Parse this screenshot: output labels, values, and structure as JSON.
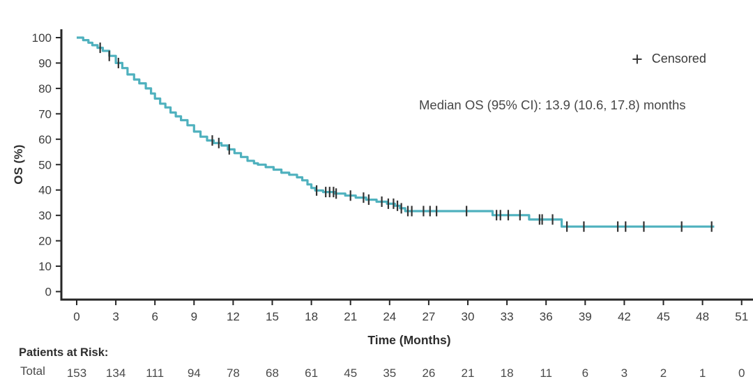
{
  "chart_data": {
    "type": "line",
    "subtype": "kaplan_meier_step",
    "title": "",
    "xlabel": "Time (Months)",
    "ylabel": "OS (%)",
    "xlim": [
      0,
      51
    ],
    "ylim": [
      0,
      100
    ],
    "x_ticks": [
      0,
      3,
      6,
      9,
      12,
      15,
      18,
      21,
      24,
      27,
      30,
      33,
      36,
      39,
      42,
      45,
      48,
      51
    ],
    "y_ticks": [
      0,
      10,
      20,
      30,
      40,
      50,
      60,
      70,
      80,
      90,
      100
    ],
    "grid": false,
    "legend": {
      "marker": "+",
      "label": "Censored",
      "position": "top-right"
    },
    "annotation": "Median OS (95% CI): 13.9 (10.6, 17.8) months",
    "median_os_months": 13.9,
    "median_os_ci": [
      10.6,
      17.8
    ],
    "series": [
      {
        "name": "Total",
        "color": "#4FB1BE",
        "steps": [
          [
            0,
            100
          ],
          [
            0.5,
            99
          ],
          [
            0.9,
            98
          ],
          [
            1.2,
            97
          ],
          [
            1.6,
            96
          ],
          [
            2.0,
            94.8
          ],
          [
            2.5,
            92.8
          ],
          [
            3.0,
            90
          ],
          [
            3.5,
            88
          ],
          [
            3.9,
            85.5
          ],
          [
            4.4,
            83.5
          ],
          [
            4.8,
            82
          ],
          [
            5.3,
            80
          ],
          [
            5.7,
            78
          ],
          [
            6.0,
            76
          ],
          [
            6.4,
            74
          ],
          [
            6.8,
            72.5
          ],
          [
            7.2,
            70.5
          ],
          [
            7.6,
            69
          ],
          [
            8.0,
            67.5
          ],
          [
            8.5,
            65.5
          ],
          [
            9.0,
            63
          ],
          [
            9.5,
            61
          ],
          [
            10.0,
            59.5
          ],
          [
            10.5,
            58.5
          ],
          [
            11.1,
            57.5
          ],
          [
            11.6,
            56
          ],
          [
            12.1,
            54.5
          ],
          [
            12.6,
            53
          ],
          [
            13.1,
            51.5
          ],
          [
            13.6,
            50.5
          ],
          [
            13.9,
            50
          ],
          [
            14.5,
            49
          ],
          [
            15.1,
            48
          ],
          [
            15.7,
            46.8
          ],
          [
            16.3,
            46
          ],
          [
            16.9,
            45
          ],
          [
            17.3,
            43.8
          ],
          [
            17.7,
            42.2
          ],
          [
            18.0,
            40.8
          ],
          [
            18.3,
            39.8
          ],
          [
            18.9,
            39.2
          ],
          [
            19.8,
            38.6
          ],
          [
            20.6,
            37.8
          ],
          [
            21.4,
            37
          ],
          [
            22.2,
            36.2
          ],
          [
            23.0,
            35.4
          ],
          [
            23.8,
            34.6
          ],
          [
            24.4,
            33.8
          ],
          [
            24.8,
            32.8
          ],
          [
            25.2,
            31.7
          ],
          [
            31.9,
            30.1
          ],
          [
            34.7,
            28.4
          ],
          [
            37.2,
            25.6
          ],
          [
            48.9,
            25.6
          ]
        ],
        "censor_times": [
          1.8,
          2.5,
          3.2,
          10.4,
          10.9,
          11.7,
          18.4,
          19.1,
          19.4,
          19.7,
          19.9,
          21.0,
          22.0,
          22.4,
          23.4,
          23.9,
          24.3,
          24.6,
          24.9,
          25.4,
          25.7,
          26.6,
          27.1,
          27.6,
          29.9,
          32.2,
          32.5,
          33.1,
          34.0,
          35.5,
          35.7,
          36.5,
          37.6,
          38.9,
          41.5,
          42.1,
          43.5,
          46.4,
          48.7
        ]
      }
    ],
    "patients_at_risk": {
      "label": "Patients at Risk:",
      "row_label": "Total",
      "times": [
        0,
        3,
        6,
        9,
        12,
        15,
        18,
        21,
        24,
        27,
        30,
        33,
        36,
        39,
        42,
        45,
        48,
        51
      ],
      "values": [
        153,
        134,
        111,
        94,
        78,
        68,
        61,
        45,
        35,
        26,
        21,
        18,
        11,
        6,
        3,
        2,
        1,
        0
      ]
    }
  },
  "colors": {
    "curve": "#4FB1BE",
    "censor": "#333333",
    "axis": "#262626",
    "text": "#3d3d3d"
  }
}
